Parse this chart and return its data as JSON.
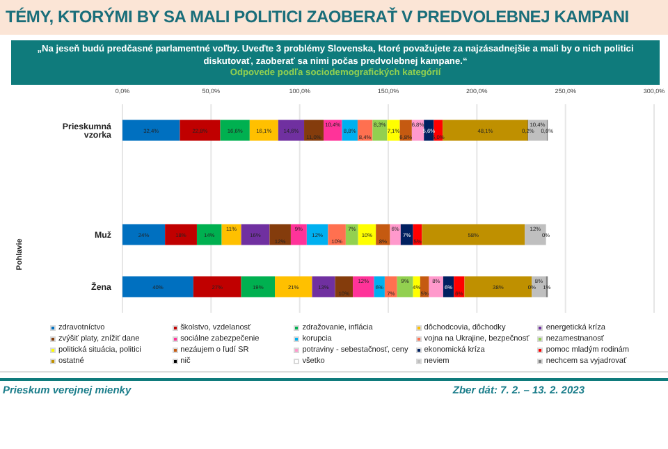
{
  "chart_data": {
    "type": "bar",
    "orientation": "horizontal",
    "stacked": true,
    "title": "TÉMY, KTORÝMI BY SA MALI POLITICI ZAOBERAŤ V PREDVOLEBNEJ KAMPANI",
    "subtitle": "„Na jeseň budú predčasné parlamentné voľby. Uveďte 3 problémy Slovenska, ktoré považujete za najzásadnejšie a mali by o nich politici diskutovať, zaoberať sa nimi počas predvolebnej kampane.“",
    "annotations": [
      "Odpovede podľa sociodemografických kategórií",
      "Pohlavie",
      "Prieskum verejnej mienky",
      "Zber dát: 7. 2. – 13. 2. 2023"
    ],
    "categories": [
      "Prieskumná vzorka",
      null,
      "Muž",
      "Žena"
    ],
    "xlim": [
      0,
      300
    ],
    "xticks": [
      {
        "value": 0,
        "label": "0,0%"
      },
      {
        "value": 50,
        "label": "50,0%"
      },
      {
        "value": 100,
        "label": "100,0%"
      },
      {
        "value": 150,
        "label": "150,0%"
      },
      {
        "value": 200,
        "label": "200,0%"
      },
      {
        "value": 250,
        "label": "250,0%"
      },
      {
        "value": 300,
        "label": "300,0%"
      }
    ],
    "grid": "x",
    "legend": "bottom",
    "series": [
      {
        "name": "zdravotníctvo",
        "color": "#0070c0",
        "values": [
          32.4,
          null,
          24,
          40
        ],
        "value_labels": [
          "32,4%",
          null,
          "24%",
          "40%"
        ]
      },
      {
        "name": "školstvo, vzdelanosť",
        "color": "#c00000",
        "values": [
          22.8,
          null,
          18,
          27
        ],
        "value_labels": [
          "22,8%",
          null,
          "18%",
          "27%"
        ]
      },
      {
        "name": "zdražovanie, inflácia",
        "color": "#00b050",
        "values": [
          16.6,
          null,
          14,
          19
        ],
        "value_labels": [
          "16,6%",
          null,
          "14%",
          "19%"
        ]
      },
      {
        "name": "dôchodcovia, dôchodky",
        "color": "#ffc000",
        "values": [
          16.1,
          null,
          11,
          21
        ],
        "value_labels": [
          "16,1%",
          null,
          "11%",
          "21%"
        ]
      },
      {
        "name": "energetická kríza",
        "color": "#7030a0",
        "values": [
          14.6,
          null,
          16,
          13
        ],
        "value_labels": [
          "14,6%",
          null,
          "16%",
          "13%"
        ]
      },
      {
        "name": "zvýšiť platy, znížiť dane",
        "color": "#843c0c",
        "values": [
          11.0,
          null,
          12,
          10
        ],
        "value_labels": [
          "11,0%",
          null,
          "12%",
          "10%"
        ]
      },
      {
        "name": "sociálne zabezpečenie",
        "color": "#ff3399",
        "values": [
          10.4,
          null,
          9,
          12
        ],
        "value_labels": [
          "10,4%",
          null,
          "9%",
          "12%"
        ]
      },
      {
        "name": "korupcia",
        "color": "#00b0f0",
        "values": [
          8.8,
          null,
          12,
          6
        ],
        "value_labels": [
          "8,8%",
          null,
          "12%",
          "6%"
        ]
      },
      {
        "name": "vojna na Ukrajine, bezpečnosť",
        "color": "#ff7050",
        "values": [
          8.4,
          null,
          10,
          7
        ],
        "value_labels": [
          "8,4%",
          null,
          "10%",
          "7%"
        ]
      },
      {
        "name": "nezamestnanosť",
        "color": "#92d050",
        "values": [
          8.3,
          null,
          7,
          9
        ],
        "value_labels": [
          "8,3%",
          null,
          "7%",
          "9%"
        ]
      },
      {
        "name": "politická situácia, politici",
        "color": "#ffff00",
        "values": [
          7.1,
          null,
          10,
          4
        ],
        "value_labels": [
          "7,1%",
          null,
          "10%",
          "4%"
        ]
      },
      {
        "name": "nezáujem o ľudí SR",
        "color": "#c55a11",
        "values": [
          6.8,
          null,
          8,
          5
        ],
        "value_labels": [
          "6,8%",
          null,
          "8%",
          "5%"
        ]
      },
      {
        "name": "potraviny - sebestačnosť, ceny",
        "color": "#ff99cc",
        "values": [
          6.8,
          null,
          6,
          8
        ],
        "value_labels": [
          "6,8%",
          null,
          "6%",
          "8%"
        ]
      },
      {
        "name": "ekonomická kríza",
        "color": "#002060",
        "values": [
          5.6,
          null,
          7,
          6
        ],
        "value_labels": [
          "5,6%",
          null,
          "7%",
          "6%"
        ]
      },
      {
        "name": "pomoc mladým rodinám",
        "color": "#ff0000",
        "values": [
          5.0,
          null,
          5,
          6
        ],
        "value_labels": [
          "5,0%",
          null,
          "5%",
          "6%"
        ]
      },
      {
        "name": "ostatné",
        "color": "#bf9000",
        "values": [
          48.1,
          null,
          58,
          38
        ],
        "value_labels": [
          "48,1%",
          null,
          "58%",
          "38%"
        ]
      },
      {
        "name": "nič",
        "color": "#000000",
        "values": [
          0.2,
          null,
          0,
          0
        ],
        "value_labels": [
          "0,2%",
          null,
          null,
          "0%"
        ]
      },
      {
        "name": "všetko",
        "color": "#ffffff",
        "values": [
          0,
          null,
          0,
          0
        ],
        "value_labels": [
          null,
          null,
          null,
          null
        ]
      },
      {
        "name": "neviem",
        "color": "#bfbfbf",
        "values": [
          10.4,
          null,
          12,
          8
        ],
        "value_labels": [
          "10,4%",
          null,
          "12%",
          "8%"
        ]
      },
      {
        "name": "nechcem sa vyjadrovať",
        "color": "#808080",
        "values": [
          0.6,
          null,
          0,
          1
        ],
        "value_labels": [
          "0,6%",
          null,
          "0%",
          "1%"
        ]
      }
    ]
  }
}
